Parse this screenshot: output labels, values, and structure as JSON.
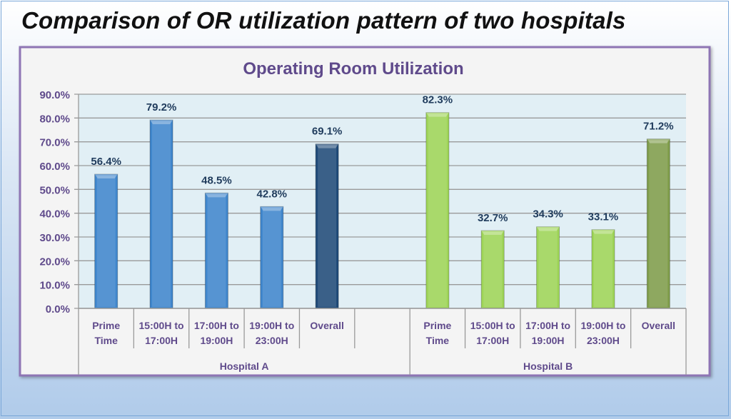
{
  "slide_title": "Comparison of OR utilization pattern of two hospitals",
  "chart_data": {
    "type": "bar",
    "title": "Operating Room Utilization",
    "xlabel": "",
    "ylabel": "",
    "ylim": [
      0,
      90
    ],
    "yticks": [
      "0.0%",
      "10.0%",
      "20.0%",
      "30.0%",
      "40.0%",
      "50.0%",
      "60.0%",
      "70.0%",
      "80.0%",
      "90.0%"
    ],
    "grid": true,
    "legend": "none",
    "groups": [
      {
        "name": "Hospital A",
        "categories": [
          [
            "Prime",
            "Time"
          ],
          [
            "15:00H to",
            "17:00H"
          ],
          [
            "17:00H to",
            "19:00H"
          ],
          [
            "19:00H to",
            "23:00H"
          ],
          [
            "Overall"
          ],
          []
        ],
        "values": [
          56.4,
          79.2,
          48.5,
          42.8,
          69.1,
          null
        ],
        "labels": [
          "56.4%",
          "79.2%",
          "48.5%",
          "42.8%",
          "69.1%",
          ""
        ],
        "colors": [
          "#3f86cc",
          "#3f86cc",
          "#3f86cc",
          "#3f86cc",
          "#1f4a78",
          ""
        ]
      },
      {
        "name": "Hospital B",
        "categories": [
          [
            "Prime",
            "Time"
          ],
          [
            "15:00H to",
            "17:00H"
          ],
          [
            "17:00H to",
            "19:00H"
          ],
          [
            "19:00H to",
            "23:00H"
          ],
          [
            "Overall"
          ]
        ],
        "values": [
          82.3,
          32.7,
          34.3,
          33.1,
          71.2
        ],
        "labels": [
          "82.3%",
          "32.7%",
          "34.3%",
          "33.1%",
          "71.2%"
        ],
        "colors": [
          "#9ed457",
          "#9ed457",
          "#9ed457",
          "#9ed457",
          "#7f9d4a"
        ]
      }
    ]
  }
}
